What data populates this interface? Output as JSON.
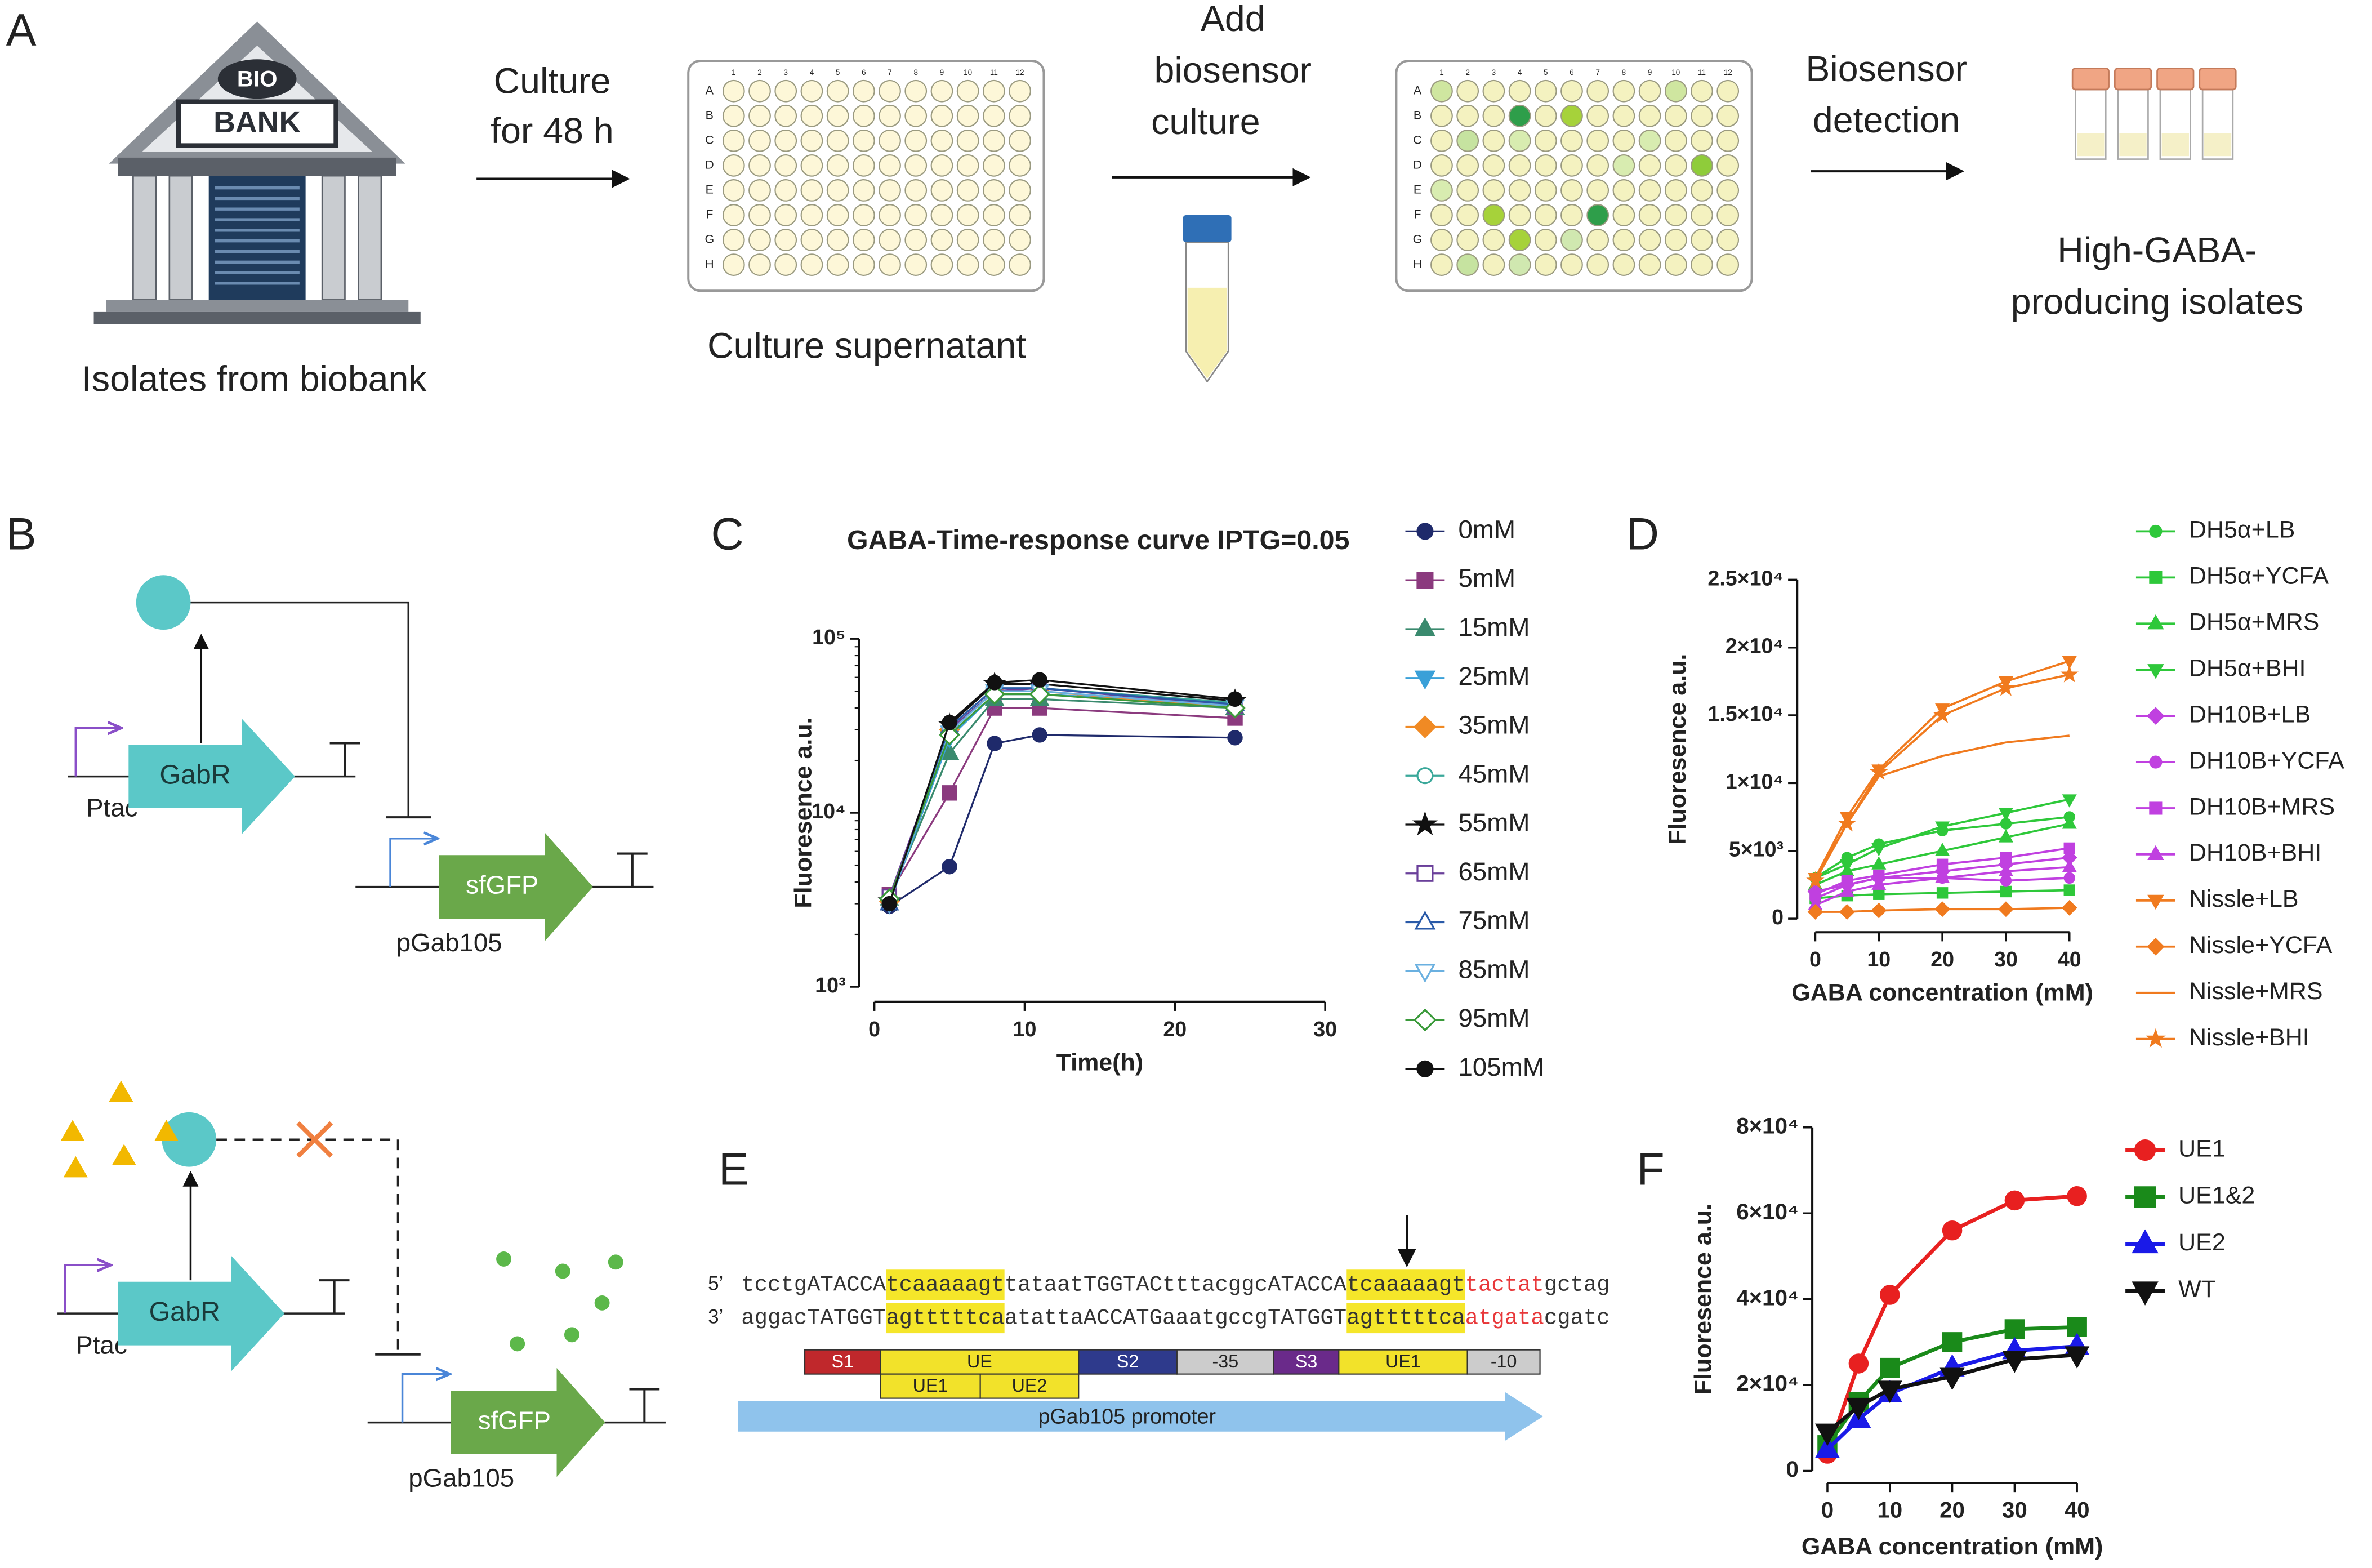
{
  "panel_a": {
    "label": "A",
    "source": "Isolates from biobank",
    "bank_sign": [
      "BIO",
      "BANK"
    ],
    "step1": [
      "Culture",
      "for 48 h"
    ],
    "plate1_caption": "Culture supernatant",
    "step2": [
      "Add",
      "biosensor",
      "culture"
    ],
    "step3": [
      "Biosensor",
      "detection"
    ],
    "result": [
      "High-GABA-",
      "producing isolates"
    ],
    "plate_rows": [
      "A",
      "B",
      "C",
      "D",
      "E",
      "F",
      "G",
      "H"
    ],
    "plate_columns": [
      1,
      2,
      3,
      4,
      5,
      6,
      7,
      8,
      9,
      10,
      11,
      12
    ]
  },
  "panel_b": {
    "label": "B",
    "protein": "GabR",
    "promoter": "Ptac",
    "reporter": "sfGFP",
    "plasmid": "pGab105"
  },
  "panel_e": {
    "label": "E",
    "ends": [
      "5’",
      "3’"
    ],
    "strand5": [
      "tcctgATACCA",
      "tcaaaaagt",
      "tataatTGGTACtttacggcATACCA",
      "tcaaaaagt",
      "tactat",
      "gctag"
    ],
    "strand3": [
      "aggacTATGGT",
      "agtttttca",
      "atattaACCATGaaatgccgTATGGT",
      "agtttttca",
      "atgata",
      "cgatc"
    ],
    "elements": [
      "S1",
      "UE",
      "S2",
      "-35",
      "S3",
      "UE1",
      "-10"
    ],
    "sub_elements": [
      "UE1",
      "UE2"
    ],
    "promoter": "pGab105 promoter"
  },
  "chart_data": [
    {
      "type": "line",
      "label": "C",
      "title": "GABA-Time-response curve IPTG=0.05",
      "xlabel": "Time(h)",
      "ylabel": "Fluoresence a.u.",
      "log_y": true,
      "x": [
        1,
        5,
        8,
        11,
        24
      ],
      "xlim": [
        0,
        30
      ],
      "xticks": [
        0,
        10,
        20,
        30
      ],
      "ylim": [
        1000,
        100000
      ],
      "yticks": [
        {
          "value": 1000,
          "label": "10³"
        },
        {
          "value": 10000,
          "label": "10⁴"
        },
        {
          "value": 100000,
          "label": "10⁵"
        }
      ],
      "series": [
        {
          "name": "0mM",
          "color": "#1f2a6b",
          "marker": "circle",
          "values": [
            2900,
            4900,
            25000,
            28000,
            27000
          ]
        },
        {
          "name": "5mM",
          "color": "#8b3a7e",
          "marker": "square",
          "values": [
            3400,
            13000,
            40000,
            40000,
            35000
          ]
        },
        {
          "name": "15mM",
          "color": "#3a8a6e",
          "marker": "triangle",
          "values": [
            3200,
            22000,
            45000,
            45000,
            40000
          ]
        },
        {
          "name": "25mM",
          "color": "#3aa0d8",
          "marker": "triangle-down",
          "values": [
            3000,
            27000,
            48000,
            48000,
            42000
          ]
        },
        {
          "name": "35mM",
          "color": "#f08a24",
          "marker": "diamond",
          "values": [
            3100,
            30000,
            50000,
            50000,
            40000
          ]
        },
        {
          "name": "45mM",
          "color": "#3aa89a",
          "marker": "circle-open",
          "values": [
            3200,
            31000,
            52000,
            52000,
            43000
          ]
        },
        {
          "name": "55mM",
          "color": "#111111",
          "marker": "star",
          "values": [
            3100,
            32000,
            55000,
            55000,
            44000
          ]
        },
        {
          "name": "65mM",
          "color": "#6a3f9a",
          "marker": "square-open",
          "values": [
            3300,
            30000,
            50000,
            52000,
            41000
          ]
        },
        {
          "name": "75mM",
          "color": "#2a5aa8",
          "marker": "triangle-open",
          "values": [
            3000,
            31000,
            52000,
            52000,
            42000
          ]
        },
        {
          "name": "85mM",
          "color": "#6ab0e0",
          "marker": "triangle-down-open",
          "values": [
            3000,
            29000,
            50000,
            50000,
            41000
          ]
        },
        {
          "name": "95mM",
          "color": "#3a9a3a",
          "marker": "diamond-open",
          "values": [
            3200,
            28000,
            48000,
            48000,
            40000
          ]
        },
        {
          "name": "105mM",
          "color": "#111111",
          "marker": "circle",
          "values": [
            3000,
            33000,
            56000,
            58000,
            45000
          ]
        }
      ]
    },
    {
      "type": "line",
      "label": "D",
      "xlabel": "GABA concentration (mM)",
      "ylabel": "Fluoresence a.u.",
      "x": [
        0,
        5,
        10,
        20,
        30,
        40
      ],
      "xlim": [
        0,
        40
      ],
      "xticks": [
        0,
        10,
        20,
        30,
        40
      ],
      "ylim": [
        0,
        25000
      ],
      "yticks": [
        0,
        {
          "value": 5000,
          "label": "5×10³"
        },
        {
          "value": 10000,
          "label": "1×10⁴"
        },
        {
          "value": 15000,
          "label": "1.5×10⁴"
        },
        {
          "value": 20000,
          "label": "2×10⁴"
        },
        {
          "value": 25000,
          "label": "2.5×10⁴"
        }
      ],
      "series": [
        {
          "name": "DH5α+LB",
          "color": "#2ec83a",
          "marker": "circle",
          "values": [
            3000,
            4500,
            5500,
            6500,
            7000,
            7500
          ]
        },
        {
          "name": "DH5α+YCFA",
          "color": "#2ec83a",
          "marker": "square",
          "values": [
            1500,
            1700,
            1800,
            1900,
            2000,
            2100
          ]
        },
        {
          "name": "DH5α+MRS",
          "color": "#2ec83a",
          "marker": "triangle",
          "values": [
            2500,
            3500,
            4000,
            5000,
            6000,
            7000
          ]
        },
        {
          "name": "DH5α+BHI",
          "color": "#2ec83a",
          "marker": "triangle-down",
          "values": [
            3000,
            4000,
            5200,
            6800,
            7800,
            8800
          ]
        },
        {
          "name": "DH10B+LB",
          "color": "#c040e0",
          "marker": "diamond",
          "values": [
            2000,
            2500,
            3000,
            3500,
            4000,
            4500
          ]
        },
        {
          "name": "DH10B+YCFA",
          "color": "#c040e0",
          "marker": "circle",
          "values": [
            1500,
            2500,
            3000,
            3000,
            2800,
            3000
          ]
        },
        {
          "name": "DH10B+MRS",
          "color": "#c040e0",
          "marker": "square",
          "values": [
            1800,
            2800,
            3200,
            4000,
            4500,
            5200
          ]
        },
        {
          "name": "DH10B+BHI",
          "color": "#c040e0",
          "marker": "triangle",
          "values": [
            1000,
            2000,
            2500,
            3000,
            3500,
            3800
          ]
        },
        {
          "name": "Nissle+LB",
          "color": "#f07a1e",
          "marker": "triangle-down",
          "values": [
            3000,
            7500,
            11000,
            15500,
            17500,
            19000
          ]
        },
        {
          "name": "Nissle+YCFA",
          "color": "#f07a1e",
          "marker": "diamond",
          "values": [
            500,
            500,
            600,
            700,
            700,
            800
          ]
        },
        {
          "name": "Nissle+MRS",
          "color": "#f07a1e",
          "marker": "none",
          "values": [
            3000,
            7000,
            10500,
            12000,
            13000,
            13500
          ]
        },
        {
          "name": "Nissle+BHI",
          "color": "#f07a1e",
          "marker": "star",
          "values": [
            2800,
            7000,
            10800,
            15000,
            17000,
            18000
          ]
        }
      ]
    },
    {
      "type": "line",
      "label": "F",
      "xlabel": "GABA concentration (mM)",
      "ylabel": "Fluoresence a.u.",
      "x": [
        0,
        5,
        10,
        20,
        30,
        40
      ],
      "xlim": [
        0,
        40
      ],
      "xticks": [
        0,
        10,
        20,
        30,
        40
      ],
      "ylim": [
        0,
        80000
      ],
      "yticks": [
        0,
        {
          "value": 20000,
          "label": "2×10⁴"
        },
        {
          "value": 40000,
          "label": "4×10⁴"
        },
        {
          "value": 60000,
          "label": "6×10⁴"
        },
        {
          "value": 80000,
          "label": "8×10⁴"
        }
      ],
      "series": [
        {
          "name": "UE1",
          "color": "#e82020",
          "marker": "circle",
          "values": [
            4000,
            25000,
            41000,
            56000,
            63000,
            64000
          ]
        },
        {
          "name": "UE1&2",
          "color": "#1a8a1a",
          "marker": "square",
          "values": [
            6000,
            16000,
            24000,
            30000,
            33000,
            33500
          ]
        },
        {
          "name": "UE2",
          "color": "#1a1ae8",
          "marker": "triangle",
          "values": [
            5000,
            12000,
            18000,
            24000,
            28000,
            29000
          ]
        },
        {
          "name": "WT",
          "color": "#111111",
          "marker": "triangle-down",
          "values": [
            9000,
            15000,
            19000,
            22000,
            26000,
            27000
          ]
        }
      ]
    }
  ]
}
